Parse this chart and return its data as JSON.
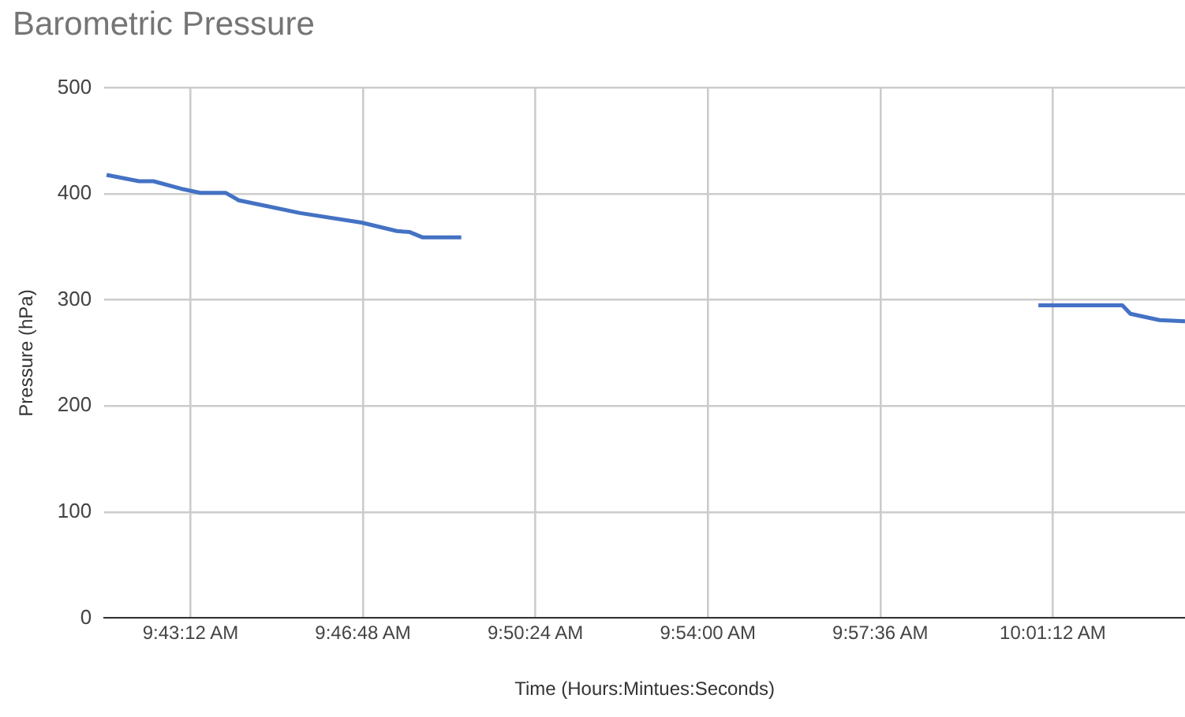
{
  "chart_data": {
    "type": "line",
    "title": "Barometric Pressure",
    "xlabel": "Time (Hours:Mintues:Seconds)",
    "ylabel": "Pressure (hPa)",
    "x": [
      9.6908,
      9.7021,
      9.7071,
      9.7166,
      9.7234,
      9.7323,
      9.7368,
      9.7458,
      9.7581,
      9.7795,
      9.7918,
      9.7963,
      9.8008,
      9.8142,
      9.9,
      10.015,
      10.0442,
      10.047,
      10.0571,
      10.066
    ],
    "series": [
      {
        "color": "#4472c4",
        "values": [
          418,
          412,
          412,
          405,
          401,
          401,
          394,
          389,
          382,
          373,
          365,
          364,
          359,
          359,
          null,
          295,
          295,
          287,
          281,
          280
        ]
      }
    ],
    "xlim": [
      9.69,
      10.066
    ],
    "xticks": [
      {
        "value": 9.72,
        "label": "9:43:12 AM"
      },
      {
        "value": 9.78,
        "label": "9:46:48 AM"
      },
      {
        "value": 9.84,
        "label": "9:50:24 AM"
      },
      {
        "value": 9.9,
        "label": "9:54:00 AM"
      },
      {
        "value": 9.96,
        "label": "9:57:36 AM"
      },
      {
        "value": 10.02,
        "label": "10:01:12 AM"
      }
    ],
    "ylim": [
      0,
      500
    ],
    "yticks": [
      0,
      100,
      200,
      300,
      400,
      500
    ],
    "grid": true,
    "marker": "none",
    "line_style": "solid"
  }
}
